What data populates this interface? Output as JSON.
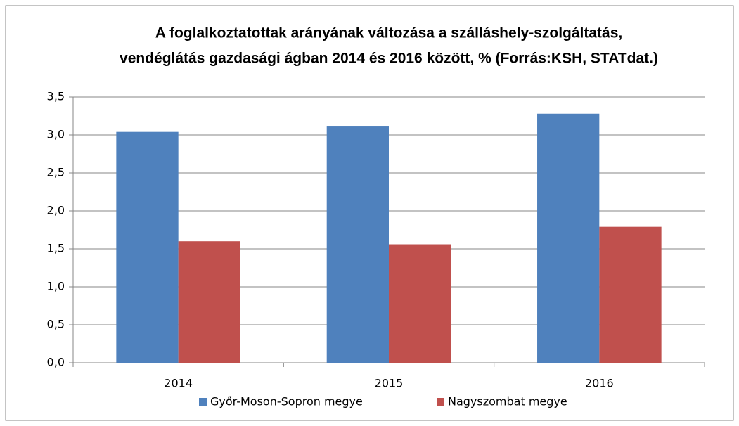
{
  "chart_data": {
    "type": "bar",
    "title": [
      "A foglalkoztatottak arányának változása a szálláshely-szolgáltatás,",
      "vendéglátás gazdasági ágban 2014 és 2016 között, % (Forrás:KSH, STATdat.)"
    ],
    "categories": [
      "2014",
      "2015",
      "2016"
    ],
    "series": [
      {
        "name": "Győr-Moson-Sopron megye",
        "color": "#4f81bd",
        "values": [
          3.04,
          3.12,
          3.28
        ]
      },
      {
        "name": "Nagyszombat megye",
        "color": "#c0504d",
        "values": [
          1.6,
          1.56,
          1.79
        ]
      }
    ],
    "ylim": [
      0,
      3.5
    ],
    "yticks": [
      {
        "value": 0,
        "label": "0,0"
      },
      {
        "value": 0.5,
        "label": "0,5"
      },
      {
        "value": 1,
        "label": "1,0"
      },
      {
        "value": 1.5,
        "label": "1,5"
      },
      {
        "value": 2,
        "label": "2,0"
      },
      {
        "value": 2.5,
        "label": "2,5"
      },
      {
        "value": 3,
        "label": "3,0"
      },
      {
        "value": 3.5,
        "label": "3,5"
      }
    ],
    "grid": true,
    "legend": "bottom"
  }
}
